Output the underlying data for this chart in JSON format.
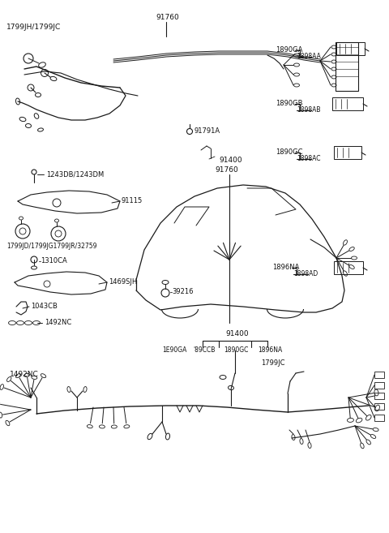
{
  "bg_color": "#ffffff",
  "line_color": "#1a1a1a",
  "text_color": "#111111",
  "figsize": [
    4.8,
    6.57
  ],
  "dpi": 100,
  "labels": {
    "top_left": "1799JH/1799JC",
    "part_91760_top": "91760",
    "part_91791A": "91791A",
    "part_91400_mid": "91400",
    "part_91760_mid": "91760",
    "part_1243": "1243DB/1243DM",
    "part_91115": "91115",
    "part_1799_mid": "1799JD/1799JG1799JR/32759",
    "part_1310CA": "1310CA",
    "part_1469SJH": "1469SJH",
    "part_1043CB": "1043CB",
    "part_1492NC_small": "1492NC",
    "part_1492NC_large": "1492NC",
    "part_39216": "39216",
    "part_91400_bot": "91400",
    "part_1890CCB": "'89CCB",
    "part_1890GC_bot": "1890GC",
    "part_1890GA_bot": "1E90GA",
    "part_1896NA_bot": "1896NA",
    "part_1799JC_bot": "1799JC",
    "right_1890GA": "1890GA",
    "right_1898AA": "1898AA",
    "right_1890GB": "1890GB",
    "right_1898AB": "1898AB",
    "right_1890GC": "1890GC",
    "right_1898AC": "1898AC",
    "right_1896NA": "1896NA",
    "right_1898AD": "1898AD"
  }
}
